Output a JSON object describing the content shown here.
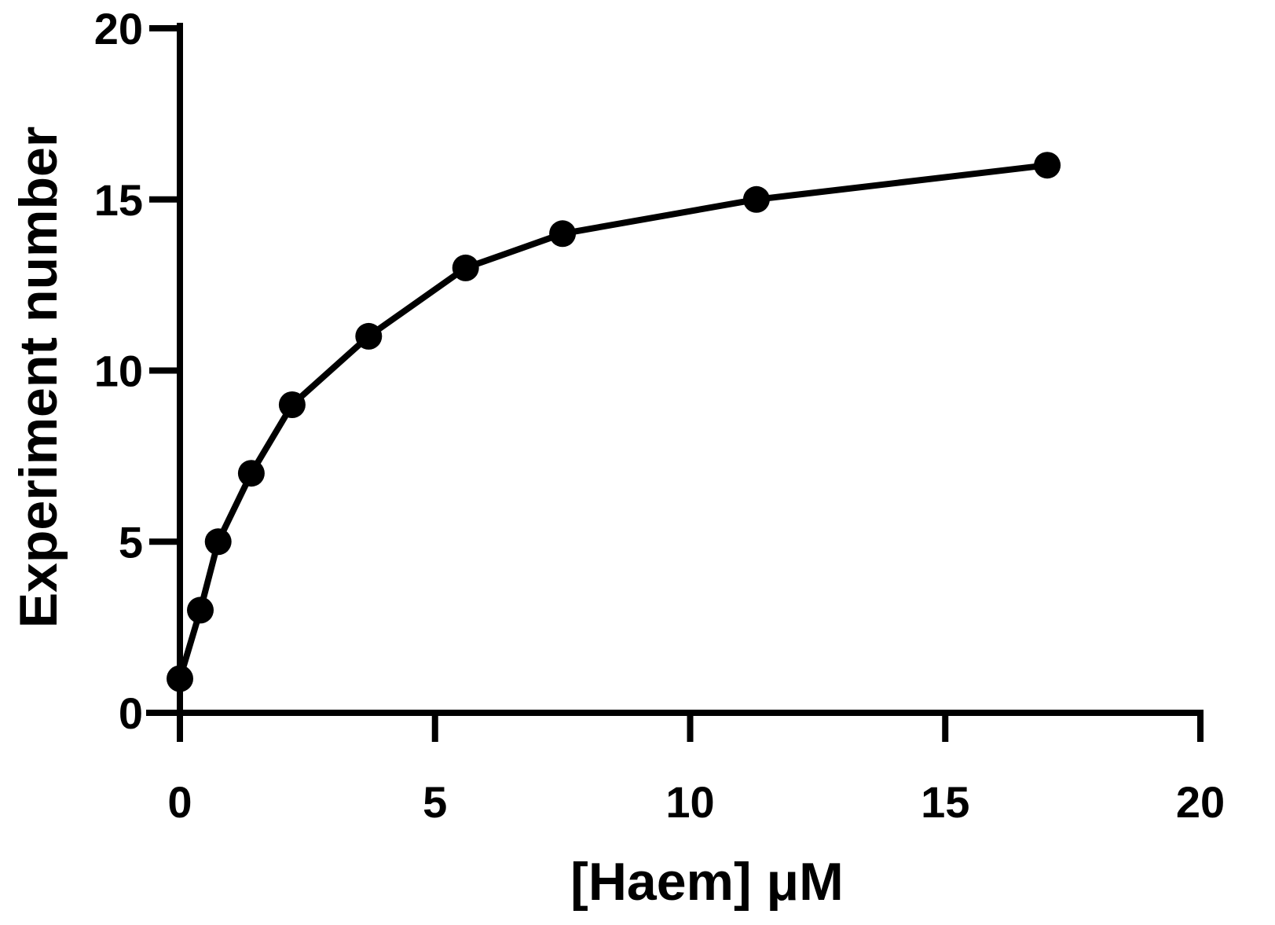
{
  "chart_data": {
    "type": "line",
    "xlabel": "[Haem] μM",
    "ylabel": "Experiment number",
    "xlim": [
      0,
      20
    ],
    "ylim": [
      0,
      20
    ],
    "xticks": [
      0,
      5,
      10,
      15,
      20
    ],
    "yticks": [
      0,
      5,
      10,
      15,
      20
    ],
    "grid": false,
    "colors": {
      "line": "#000000",
      "marker": "#000000"
    },
    "series": [
      {
        "x": [
          0.0,
          0.4,
          0.75,
          1.4,
          2.2,
          3.7,
          5.6,
          7.5,
          11.3,
          17.0
        ],
        "y": [
          1,
          3,
          5,
          7,
          9,
          11,
          13,
          14,
          15,
          16
        ]
      }
    ]
  }
}
